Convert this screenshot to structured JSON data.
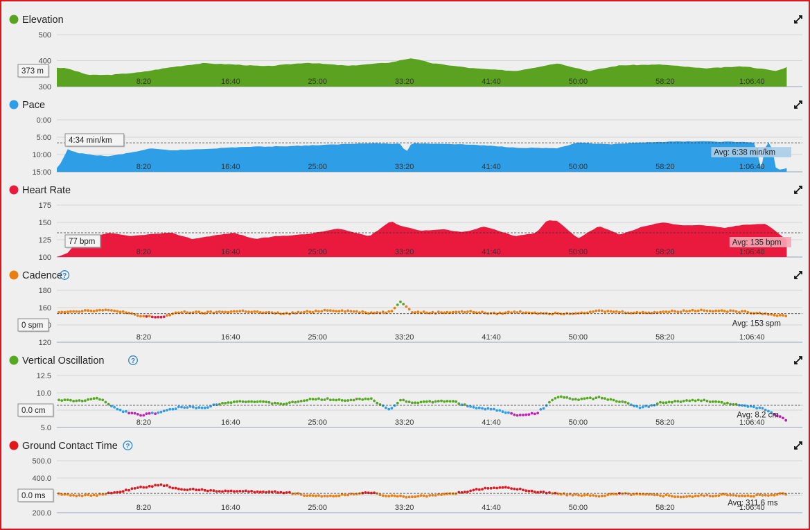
{
  "x_ticks": [
    "8:20",
    "16:40",
    "25:00",
    "33:20",
    "41:40",
    "50:00",
    "58:20",
    "1:06:40"
  ],
  "chart_data": [
    {
      "type": "area",
      "title": "Elevation",
      "color": "#5aa21f",
      "ylim": [
        300,
        500
      ],
      "yticks": [
        "500",
        "400",
        "300"
      ],
      "ytick_values": [
        500,
        400,
        300
      ],
      "reverse": false,
      "cursor_label": "373 m",
      "avg_label": "",
      "x_minutes": [
        0,
        1,
        3,
        5,
        8,
        11,
        14,
        17,
        20,
        24,
        28,
        32,
        34,
        36,
        40,
        44,
        48,
        51,
        54,
        58,
        62,
        66,
        69,
        70
      ],
      "values": [
        373,
        370,
        345,
        345,
        355,
        375,
        390,
        385,
        378,
        392,
        380,
        393,
        410,
        390,
        370,
        360,
        390,
        360,
        382,
        385,
        370,
        378,
        360,
        375
      ]
    },
    {
      "type": "area",
      "title": "Pace",
      "color": "#2e9ee6",
      "ylim": [
        0,
        15
      ],
      "yticks": [
        "0:00",
        "5:00",
        "10:00",
        "15:00"
      ],
      "ytick_values": [
        0,
        5,
        10,
        15
      ],
      "reverse": true,
      "cursor_label": "4:34 min/km",
      "avg_label": "Avg: 6:38 min/km",
      "avg_value": 6.63,
      "x_minutes": [
        0,
        0.5,
        1,
        2,
        3,
        5,
        7,
        9,
        11,
        14,
        18,
        22,
        26,
        30,
        33,
        33.5,
        34,
        37,
        40,
        44,
        48,
        50,
        53,
        57,
        61,
        64,
        66,
        67,
        67.5,
        68,
        68.5,
        69,
        70
      ],
      "values": [
        14,
        12,
        8.5,
        9.5,
        10,
        10.5,
        9.5,
        8.3,
        8.8,
        8.4,
        7.8,
        7.6,
        7.2,
        6.7,
        7,
        9.5,
        6.8,
        6.9,
        7.2,
        8,
        8.2,
        6.6,
        7.1,
        6.4,
        6.2,
        6.3,
        6.4,
        6.6,
        15,
        6.6,
        6.7,
        14.5,
        14
      ]
    },
    {
      "type": "area",
      "title": "Heart Rate",
      "color": "#ea1a3e",
      "ylim": [
        100,
        175
      ],
      "yticks": [
        "175",
        "150",
        "125",
        "100"
      ],
      "ytick_values": [
        175,
        150,
        125,
        100
      ],
      "reverse": false,
      "cursor_label": "77 bpm",
      "avg_label": "Avg: 135 bpm",
      "avg_value": 135,
      "x_minutes": [
        0,
        1,
        2,
        3,
        4,
        5,
        7,
        9,
        11,
        13,
        15,
        17,
        19,
        21,
        24,
        27,
        30,
        32,
        33,
        35,
        37,
        39,
        41,
        44,
        46,
        47,
        48,
        50,
        52,
        54,
        56,
        58,
        60,
        62,
        64,
        66,
        68,
        70
      ],
      "values": [
        100,
        105,
        123,
        128,
        131,
        135,
        130,
        133,
        135,
        126,
        131,
        135,
        126,
        130,
        133,
        141,
        130,
        152,
        145,
        138,
        140,
        136,
        144,
        130,
        135,
        153,
        152,
        127,
        145,
        132,
        143,
        150,
        146,
        146,
        142,
        147,
        148,
        125
      ]
    },
    {
      "type": "scatter",
      "title": "Cadence",
      "help": true,
      "color": "#e97e12",
      "ylim": [
        120,
        180
      ],
      "yticks": [
        "180",
        "160",
        "140",
        "120"
      ],
      "ytick_values": [
        180,
        160,
        140,
        120
      ],
      "reverse": false,
      "cursor_label": "0 spm",
      "avg_label": "Avg: 153 spm",
      "avg_value": 153,
      "x_minutes": [
        0,
        2,
        4,
        6,
        8,
        10,
        12,
        14,
        16,
        18,
        20,
        22,
        24,
        26,
        28,
        30,
        32,
        33,
        34,
        36,
        38,
        40,
        42,
        44,
        46,
        48,
        50,
        52,
        54,
        56,
        58,
        60,
        62,
        64,
        66,
        68,
        70
      ],
      "values": [
        155,
        156,
        157,
        156,
        150,
        149,
        155,
        154,
        155,
        156,
        154,
        153,
        155,
        157,
        156,
        154,
        155,
        168,
        155,
        154,
        155,
        155,
        153,
        155,
        154,
        153,
        154,
        156,
        155,
        154,
        155,
        156,
        157,
        156,
        155,
        153,
        150
      ]
    },
    {
      "type": "scatter",
      "title": "Vertical Oscillation",
      "help": true,
      "color": "#56a823",
      "ylim": [
        5.0,
        12.5
      ],
      "yticks": [
        "12.5",
        "10.0",
        "7.5",
        "5.0"
      ],
      "ytick_values": [
        12.5,
        10,
        7.5,
        5
      ],
      "reverse": false,
      "cursor_label": "0.0 cm",
      "avg_label": "Avg: 8.2 cm",
      "avg_value": 8.2,
      "x_minutes": [
        0,
        2,
        4,
        6,
        8,
        10,
        12,
        14,
        16,
        18,
        20,
        22,
        24,
        26,
        28,
        30,
        32,
        33,
        34,
        36,
        38,
        40,
        42,
        44,
        46,
        48,
        50,
        52,
        54,
        56,
        58,
        60,
        62,
        64,
        66,
        68,
        70
      ],
      "values": [
        9.0,
        8.8,
        9.2,
        7.5,
        6.8,
        7.2,
        8.0,
        7.8,
        8.6,
        8.8,
        8.6,
        8.4,
        9.0,
        9.1,
        8.9,
        9.2,
        7.6,
        9.0,
        8.6,
        8.7,
        8.8,
        7.8,
        7.6,
        6.8,
        7.0,
        9.5,
        9.0,
        9.3,
        8.8,
        7.8,
        8.6,
        8.8,
        8.9,
        8.5,
        8.2,
        7.6,
        6.0
      ]
    },
    {
      "type": "scatter",
      "title": "Ground Contact Time",
      "help": true,
      "color": "#e2171d",
      "ylim": [
        200,
        500
      ],
      "yticks": [
        "500.0",
        "400.0",
        "300.0",
        "200.0"
      ],
      "ytick_values": [
        500,
        400,
        300,
        200
      ],
      "reverse": false,
      "cursor_label": "0.0 ms",
      "avg_label": "Avg: 311.6 ms",
      "avg_value": 311.6,
      "x_minutes": [
        0,
        2,
        4,
        6,
        8,
        10,
        12,
        14,
        16,
        18,
        20,
        22,
        24,
        26,
        28,
        30,
        32,
        34,
        36,
        38,
        40,
        42,
        44,
        46,
        48,
        50,
        52,
        54,
        56,
        58,
        60,
        62,
        64,
        66,
        68,
        70
      ],
      "values": [
        310,
        300,
        302,
        320,
        345,
        360,
        335,
        330,
        325,
        322,
        320,
        318,
        300,
        295,
        305,
        318,
        295,
        292,
        300,
        310,
        330,
        345,
        340,
        320,
        310,
        300,
        298,
        310,
        306,
        300,
        292,
        298,
        302,
        296,
        300,
        310
      ]
    }
  ]
}
